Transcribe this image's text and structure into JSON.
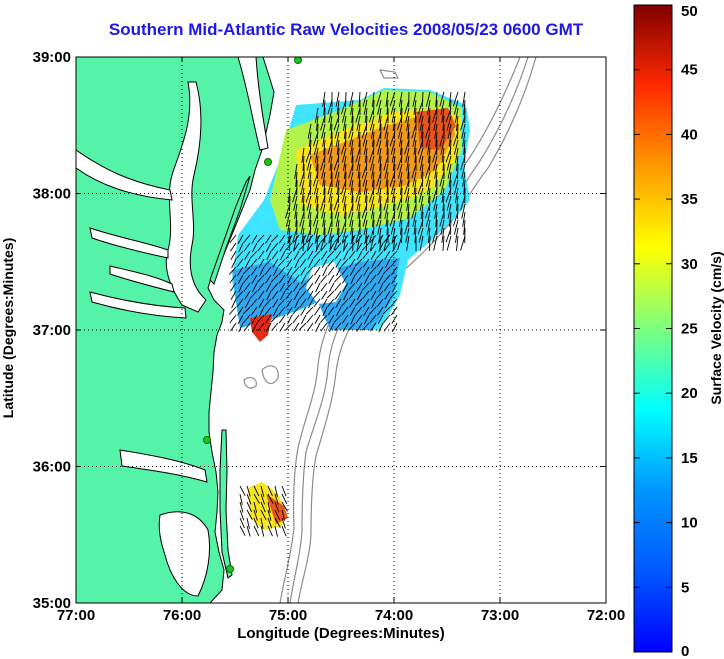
{
  "map": {
    "title": "Southern Mid-Atlantic Raw Velocities 2008/05/23 0600 GMT",
    "xlabel": "Longitude (Degrees:Minutes)",
    "ylabel": "Latitude (Degrees:Minutes)",
    "x_ticks": [
      "77:00",
      "76:00",
      "75:00",
      "74:00",
      "73:00",
      "72:00"
    ],
    "y_ticks": [
      "39:00",
      "38:00",
      "37:00",
      "36:00",
      "35:00"
    ],
    "colors": {
      "land": "#55f3a8",
      "coastline": "#000000",
      "bathymetry": "#8c8c8c",
      "station": "#19c619",
      "title": "#1e18e6"
    }
  },
  "colorbar": {
    "label": "Surface Velocity (cm/s)",
    "ticks": [
      "0",
      "5",
      "10",
      "15",
      "20",
      "25",
      "30",
      "35",
      "40",
      "45",
      "50"
    ],
    "min": 0,
    "max": 50,
    "colormap": "jet"
  }
}
